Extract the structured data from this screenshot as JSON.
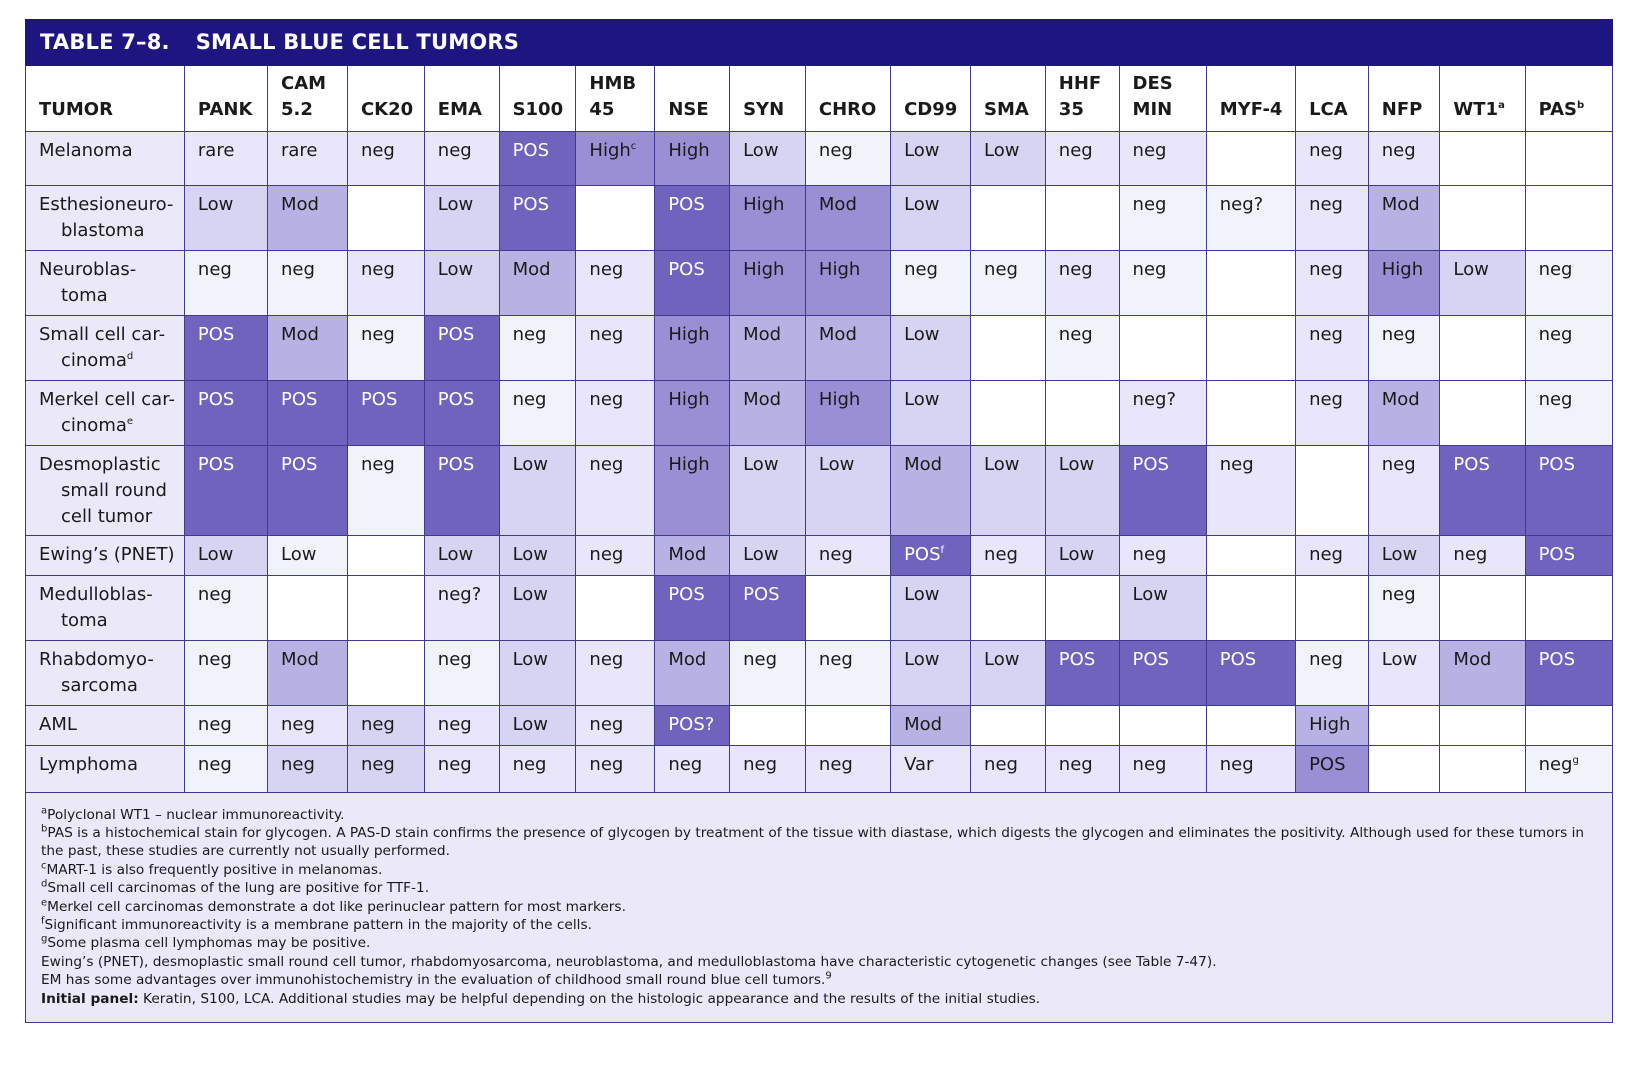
{
  "title": {
    "number": "TABLE 7–8.",
    "text": "SMALL BLUE CELL TUMORS"
  },
  "columns": [
    {
      "lines": [
        "TUMOR"
      ]
    },
    {
      "lines": [
        "PANK"
      ]
    },
    {
      "lines": [
        "CAM",
        "5.2"
      ]
    },
    {
      "lines": [
        "CK20"
      ]
    },
    {
      "lines": [
        "EMA"
      ]
    },
    {
      "lines": [
        "S100"
      ]
    },
    {
      "lines": [
        "HMB",
        "45"
      ]
    },
    {
      "lines": [
        "NSE"
      ]
    },
    {
      "lines": [
        "SYN"
      ]
    },
    {
      "lines": [
        "CHRO"
      ]
    },
    {
      "lines": [
        "CD99"
      ]
    },
    {
      "lines": [
        "SMA"
      ]
    },
    {
      "lines": [
        "HHF",
        "35"
      ]
    },
    {
      "lines": [
        "DES",
        "MIN"
      ]
    },
    {
      "lines": [
        "MYF-4"
      ]
    },
    {
      "lines": [
        "LCA"
      ]
    },
    {
      "lines": [
        "NFP"
      ]
    },
    {
      "lines": [
        "WT1"
      ],
      "sup": "a"
    },
    {
      "lines": [
        "PAS"
      ],
      "sup": "b"
    }
  ],
  "rows": [
    {
      "tumor": [
        "Melanoma"
      ],
      "height": 54,
      "cells": [
        {
          "t": "rare",
          "s": 2
        },
        {
          "t": "rare",
          "s": 2
        },
        {
          "t": "neg",
          "s": 2
        },
        {
          "t": "neg",
          "s": 2
        },
        {
          "t": "POS",
          "s": 6
        },
        {
          "t": "High",
          "sup": "c",
          "s": 5
        },
        {
          "t": "High",
          "s": 5
        },
        {
          "t": "Low",
          "s": 3
        },
        {
          "t": "neg",
          "s": 1
        },
        {
          "t": "Low",
          "s": 3
        },
        {
          "t": "Low",
          "s": 3
        },
        {
          "t": "neg",
          "s": 2
        },
        {
          "t": "neg",
          "s": 2
        },
        {
          "t": "",
          "s": 0
        },
        {
          "t": "neg",
          "s": 2
        },
        {
          "t": "neg",
          "s": 2
        },
        {
          "t": "",
          "s": 0
        },
        {
          "t": "",
          "s": 0
        }
      ]
    },
    {
      "tumor": [
        "Esthesioneuro-",
        "blastoma"
      ],
      "height": 65,
      "cells": [
        {
          "t": "Low",
          "s": 3
        },
        {
          "t": "Mod",
          "s": 4
        },
        {
          "t": "",
          "s": 0
        },
        {
          "t": "Low",
          "s": 3
        },
        {
          "t": "POS",
          "s": 6
        },
        {
          "t": "",
          "s": 0
        },
        {
          "t": "POS",
          "s": 6
        },
        {
          "t": "High",
          "s": 5
        },
        {
          "t": "Mod",
          "s": 5
        },
        {
          "t": "Low",
          "s": 3
        },
        {
          "t": "",
          "s": 0
        },
        {
          "t": "",
          "s": 0
        },
        {
          "t": "neg",
          "s": 1
        },
        {
          "t": "neg?",
          "s": 1
        },
        {
          "t": "neg",
          "s": 2
        },
        {
          "t": "Mod",
          "s": 4
        },
        {
          "t": "",
          "s": 0
        },
        {
          "t": "",
          "s": 0
        }
      ]
    },
    {
      "tumor": [
        "Neuroblas-",
        "toma"
      ],
      "height": 65,
      "cells": [
        {
          "t": "neg",
          "s": 1
        },
        {
          "t": "neg",
          "s": 1
        },
        {
          "t": "neg",
          "s": 2
        },
        {
          "t": "Low",
          "s": 3
        },
        {
          "t": "Mod",
          "s": 4
        },
        {
          "t": "neg",
          "s": 2
        },
        {
          "t": "POS",
          "s": 6
        },
        {
          "t": "High",
          "s": 5
        },
        {
          "t": "High",
          "s": 5
        },
        {
          "t": "neg",
          "s": 1
        },
        {
          "t": "neg",
          "s": 1
        },
        {
          "t": "neg",
          "s": 2
        },
        {
          "t": "neg",
          "s": 1
        },
        {
          "t": "",
          "s": 0
        },
        {
          "t": "neg",
          "s": 2
        },
        {
          "t": "High",
          "s": 5
        },
        {
          "t": "Low",
          "s": 3
        },
        {
          "t": "neg",
          "s": 1
        }
      ]
    },
    {
      "tumor": [
        "Small cell car-",
        "cinoma"
      ],
      "tumorSup": "d",
      "height": 65,
      "cells": [
        {
          "t": "POS",
          "s": 6
        },
        {
          "t": "Mod",
          "s": 4
        },
        {
          "t": "neg",
          "s": 1
        },
        {
          "t": "POS",
          "s": 6
        },
        {
          "t": "neg",
          "s": 1
        },
        {
          "t": "neg",
          "s": 2
        },
        {
          "t": "High",
          "s": 5
        },
        {
          "t": "Mod",
          "s": 4
        },
        {
          "t": "Mod",
          "s": 4
        },
        {
          "t": "Low",
          "s": 3
        },
        {
          "t": "",
          "s": 0
        },
        {
          "t": "neg",
          "s": 1
        },
        {
          "t": "",
          "s": 0
        },
        {
          "t": "",
          "s": 0
        },
        {
          "t": "neg",
          "s": 2
        },
        {
          "t": "neg",
          "s": 1
        },
        {
          "t": "",
          "s": 0
        },
        {
          "t": "neg",
          "s": 1
        }
      ]
    },
    {
      "tumor": [
        "Merkel cell car-",
        "cinoma"
      ],
      "tumorSup": "e",
      "height": 65,
      "cells": [
        {
          "t": "POS",
          "s": 6
        },
        {
          "t": "POS",
          "s": 6
        },
        {
          "t": "POS",
          "s": 6
        },
        {
          "t": "POS",
          "s": 6
        },
        {
          "t": "neg",
          "s": 1
        },
        {
          "t": "neg",
          "s": 2
        },
        {
          "t": "High",
          "s": 5
        },
        {
          "t": "Mod",
          "s": 4
        },
        {
          "t": "High",
          "s": 5
        },
        {
          "t": "Low",
          "s": 3
        },
        {
          "t": "",
          "s": 0
        },
        {
          "t": "",
          "s": 0
        },
        {
          "t": "neg?",
          "s": 2
        },
        {
          "t": "",
          "s": 0
        },
        {
          "t": "neg",
          "s": 2
        },
        {
          "t": "Mod",
          "s": 4
        },
        {
          "t": "",
          "s": 0
        },
        {
          "t": "neg",
          "s": 1
        }
      ]
    },
    {
      "tumor": [
        "Desmoplastic",
        "small round",
        "cell tumor"
      ],
      "height": 90,
      "cells": [
        {
          "t": "POS",
          "s": 6
        },
        {
          "t": "POS",
          "s": 6
        },
        {
          "t": "neg",
          "s": 1
        },
        {
          "t": "POS",
          "s": 6
        },
        {
          "t": "Low",
          "s": 3
        },
        {
          "t": "neg",
          "s": 2
        },
        {
          "t": "High",
          "s": 5
        },
        {
          "t": "Low",
          "s": 3
        },
        {
          "t": "Low",
          "s": 3
        },
        {
          "t": "Mod",
          "s": 4
        },
        {
          "t": "Low",
          "s": 3
        },
        {
          "t": "Low",
          "s": 3
        },
        {
          "t": "POS",
          "s": 6
        },
        {
          "t": "neg",
          "s": 2
        },
        {
          "t": "",
          "s": 0
        },
        {
          "t": "neg",
          "s": 2
        },
        {
          "t": "POS",
          "s": 6
        },
        {
          "t": "POS",
          "s": 6
        }
      ]
    },
    {
      "tumor": [
        "Ewing’s (PNET)"
      ],
      "height": 40,
      "cells": [
        {
          "t": "Low",
          "s": 3
        },
        {
          "t": "Low",
          "s": 1
        },
        {
          "t": "",
          "s": 0
        },
        {
          "t": "Low",
          "s": 3
        },
        {
          "t": "Low",
          "s": 3
        },
        {
          "t": "neg",
          "s": 2
        },
        {
          "t": "Mod",
          "s": 4
        },
        {
          "t": "Low",
          "s": 3
        },
        {
          "t": "neg",
          "s": 2
        },
        {
          "t": "POS",
          "sup": "f",
          "s": 6
        },
        {
          "t": "neg",
          "s": 2
        },
        {
          "t": "Low",
          "s": 3
        },
        {
          "t": "neg",
          "s": 2
        },
        {
          "t": "",
          "s": 0
        },
        {
          "t": "neg",
          "s": 2
        },
        {
          "t": "Low",
          "s": 3
        },
        {
          "t": "neg",
          "s": 2
        },
        {
          "t": "POS",
          "s": 6
        }
      ]
    },
    {
      "tumor": [
        "Medulloblas-",
        "toma"
      ],
      "height": 65,
      "cells": [
        {
          "t": "neg",
          "s": 1
        },
        {
          "t": "",
          "s": 0
        },
        {
          "t": "",
          "s": 0
        },
        {
          "t": "neg?",
          "s": 2
        },
        {
          "t": "Low",
          "s": 3
        },
        {
          "t": "",
          "s": 0
        },
        {
          "t": "POS",
          "s": 6
        },
        {
          "t": "POS",
          "s": 6
        },
        {
          "t": "",
          "s": 0
        },
        {
          "t": "Low",
          "s": 3
        },
        {
          "t": "",
          "s": 0
        },
        {
          "t": "",
          "s": 0
        },
        {
          "t": "Low",
          "s": 3
        },
        {
          "t": "",
          "s": 0
        },
        {
          "t": "",
          "s": 0
        },
        {
          "t": "neg",
          "s": 1
        },
        {
          "t": "",
          "s": 0
        },
        {
          "t": "",
          "s": 0
        }
      ]
    },
    {
      "tumor": [
        "Rhabdomyo-",
        "sarcoma"
      ],
      "height": 65,
      "cells": [
        {
          "t": "neg",
          "s": 1
        },
        {
          "t": "Mod",
          "s": 4
        },
        {
          "t": "",
          "s": 0
        },
        {
          "t": "neg",
          "s": 1
        },
        {
          "t": "Low",
          "s": 3
        },
        {
          "t": "neg",
          "s": 2
        },
        {
          "t": "Mod",
          "s": 4
        },
        {
          "t": "neg",
          "s": 1
        },
        {
          "t": "neg",
          "s": 1
        },
        {
          "t": "Low",
          "s": 3
        },
        {
          "t": "Low",
          "s": 3
        },
        {
          "t": "POS",
          "s": 6
        },
        {
          "t": "POS",
          "s": 6
        },
        {
          "t": "POS",
          "s": 6
        },
        {
          "t": "neg",
          "s": 1
        },
        {
          "t": "Low",
          "s": 2
        },
        {
          "t": "Mod",
          "s": 4
        },
        {
          "t": "POS",
          "s": 6
        }
      ]
    },
    {
      "tumor": [
        "AML"
      ],
      "height": 40,
      "cells": [
        {
          "t": "neg",
          "s": 1
        },
        {
          "t": "neg",
          "s": 2
        },
        {
          "t": "neg",
          "s": 3
        },
        {
          "t": "neg",
          "s": 2
        },
        {
          "t": "Low",
          "s": 3
        },
        {
          "t": "neg",
          "s": 2
        },
        {
          "t": "POS?",
          "s": 6
        },
        {
          "t": "",
          "s": 0
        },
        {
          "t": "",
          "s": 0
        },
        {
          "t": "Mod",
          "s": 4
        },
        {
          "t": "",
          "s": 0
        },
        {
          "t": "",
          "s": 0
        },
        {
          "t": "",
          "s": 0
        },
        {
          "t": "",
          "s": 0
        },
        {
          "t": "High",
          "s": 4
        },
        {
          "t": "",
          "s": 0
        },
        {
          "t": "",
          "s": 0
        },
        {
          "t": "",
          "s": 0
        }
      ]
    },
    {
      "tumor": [
        "Lymphoma"
      ],
      "height": 47,
      "cells": [
        {
          "t": "neg",
          "s": 1
        },
        {
          "t": "neg",
          "s": 3
        },
        {
          "t": "neg",
          "s": 3
        },
        {
          "t": "neg",
          "s": 2
        },
        {
          "t": "neg",
          "s": 2
        },
        {
          "t": "neg",
          "s": 2
        },
        {
          "t": "neg",
          "s": 2
        },
        {
          "t": "neg",
          "s": 2
        },
        {
          "t": "neg",
          "s": 2
        },
        {
          "t": "Var",
          "s": 2
        },
        {
          "t": "neg",
          "s": 2
        },
        {
          "t": "neg",
          "s": 2
        },
        {
          "t": "neg",
          "s": 2
        },
        {
          "t": "neg",
          "s": 2
        },
        {
          "t": "POS",
          "s": 5
        },
        {
          "t": "",
          "s": 0
        },
        {
          "t": "",
          "s": 0
        },
        {
          "t": "neg",
          "sup": "g",
          "s": 1
        }
      ]
    }
  ],
  "footnotes": [
    {
      "sup": "a",
      "text": "Polyclonal WT1 – nuclear immunoreactivity."
    },
    {
      "sup": "b",
      "text": "PAS is a histochemical stain for glycogen. A PAS-D stain confirms the presence of glycogen by treatment of the tissue with diastase, which digests the glycogen and eliminates the positivity. Although used for these tumors in the past, these studies are currently not usually performed."
    },
    {
      "sup": "c",
      "text": "MART-1 is also frequently positive in melanomas."
    },
    {
      "sup": "d",
      "text": "Small cell carcinomas of the lung are positive for TTF-1."
    },
    {
      "sup": "e",
      "text": "Merkel cell carcinomas demonstrate a dot like perinuclear pattern for most markers."
    },
    {
      "sup": "f",
      "text": "Significant immunoreactivity is a membrane pattern in the majority of the cells."
    },
    {
      "sup": "g",
      "text": "Some plasma cell lymphomas may be positive."
    },
    {
      "sup": "",
      "text": "Ewing’s (PNET), desmoplastic small round cell tumor, rhabdomyosarcoma, neuroblastoma, and medulloblastoma have characteristic cytogenetic changes (see Table 7-47)."
    },
    {
      "sup": "",
      "text": "EM has some advantages over immunohistochemistry in the evaluation of childhood small round blue cell tumors.",
      "trailSup": "9"
    }
  ],
  "initial_panel": {
    "label": "Initial panel:",
    "text": " Keratin, S100, LCA. Additional studies may be helpful depending on the histologic appearance and the results of the initial studies."
  },
  "colors": {
    "header_bar": "#1e1680",
    "border": "#3d3a8f",
    "shade_pos": "#7063bd",
    "shade_high": "#9a8ed4",
    "shade_mod": "#b7b2e3",
    "shade_low": "#d7d3f2",
    "shade_light": "#e9e5fa",
    "shade_faint": "#f1f3fb"
  }
}
